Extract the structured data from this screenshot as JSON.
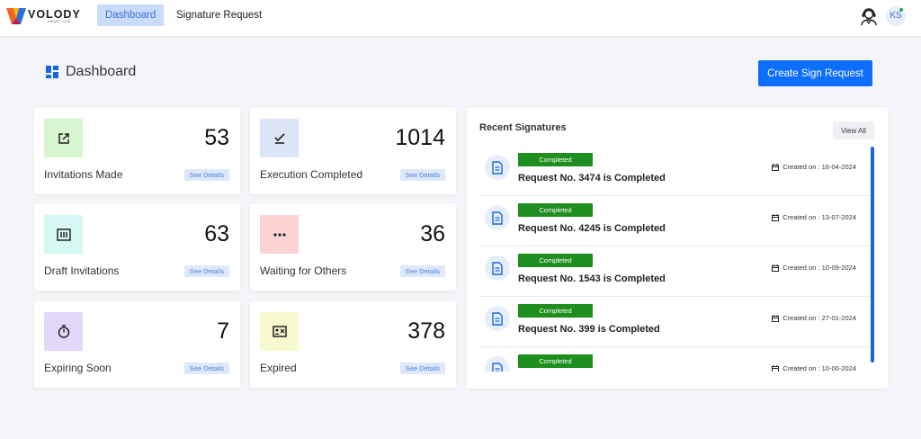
{
  "brand": {
    "name": "VOLODY",
    "tagline": "SMART CLM"
  },
  "nav": {
    "dashboard": "Dashboard",
    "signature_request": "Signature Request"
  },
  "user": {
    "initials": "KS"
  },
  "page": {
    "title": "Dashboard",
    "create_button": "Create Sign Request"
  },
  "cards": [
    {
      "label": "Invitations Made",
      "value": "53",
      "action": "See Details",
      "icon": "external-link-icon",
      "color": "#d7f5cf"
    },
    {
      "label": "Execution Completed",
      "value": "1014",
      "action": "See Details",
      "icon": "check-icon",
      "color": "#dde6f8"
    },
    {
      "label": "Draft Invitations",
      "value": "63",
      "action": "See Details",
      "icon": "document-icon",
      "color": "#d6f8f4"
    },
    {
      "label": "Waiting for Others",
      "value": "36",
      "action": "See Details",
      "icon": "ellipsis-icon",
      "color": "#fbd3d3"
    },
    {
      "label": "Expiring Soon",
      "value": "7",
      "action": "See Details",
      "icon": "stopwatch-icon",
      "color": "#e4d8fa"
    },
    {
      "label": "Expired",
      "value": "378",
      "action": "See Details",
      "icon": "expired-card-icon",
      "color": "#f7f9cf"
    }
  ],
  "recent": {
    "title": "Recent Signatures",
    "view_all": "View All",
    "items": [
      {
        "status": "Completed",
        "title": "Request No. 3474 is Completed",
        "created": "Created on : 16-04-2024"
      },
      {
        "status": "Completed",
        "title": "Request No. 4245 is Completed",
        "created": "Created on : 13-07-2024"
      },
      {
        "status": "Completed",
        "title": "Request No. 1543 is Completed",
        "created": "Created on : 10-09-2024"
      },
      {
        "status": "Completed",
        "title": "Request No. 399 is Completed",
        "created": "Created on : 27-01-2024"
      },
      {
        "status": "Completed",
        "title": "",
        "created": "Created on : 10-00-2024"
      }
    ]
  },
  "colors": {
    "accent": "#0d6efd",
    "status_completed": "#1e8e1e",
    "nav_active_bg": "#c9dcfb"
  }
}
